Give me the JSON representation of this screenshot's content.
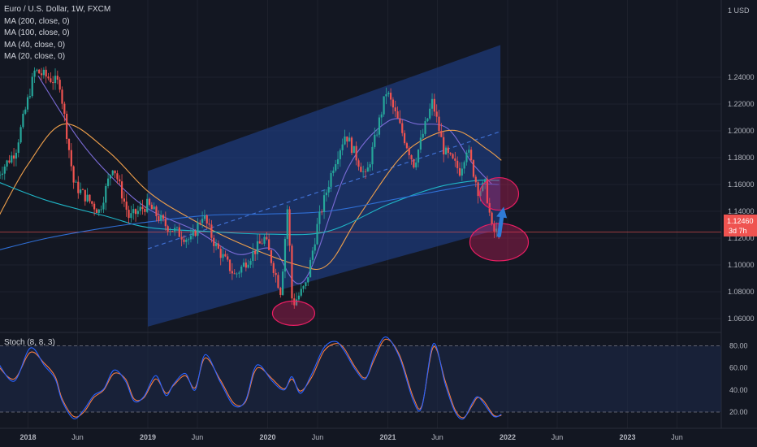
{
  "legend": {
    "title": "Euro / U.S. Dollar, 1W, FXCM",
    "ma200": "MA (200, close, 0)",
    "ma100": "MA (100, close, 0)",
    "ma40": "MA (40, close, 0)",
    "ma20": "MA (20, close, 0)"
  },
  "axis_unit": "1 USD",
  "price_tag": {
    "value": "1.12460",
    "countdown": "3d 7h"
  },
  "stoch_label": "Stoch (8, 8, 3)",
  "colors": {
    "background": "#131722",
    "up": "#26a69a",
    "down": "#ef5350",
    "channel": "#1e3a78",
    "ma20": "#7b6bd6",
    "ma40": "#f0a04b",
    "ma100": "#1fb5c6",
    "ma200": "#2f6fd6",
    "stoch_k": "#2962ff",
    "stoch_d": "#f57c42",
    "ellipse": "#e91e63"
  },
  "chart_data": {
    "type": "candlestick",
    "symbol": "EURUSD",
    "interval": "1W",
    "y_ticks": [
      1.06,
      1.08,
      1.1,
      1.12,
      1.14,
      1.16,
      1.18,
      1.2,
      1.22,
      1.24
    ],
    "y_tick_labels": [
      "1.06000",
      "1.08000",
      "1.10000",
      "1.12000",
      "1.14000",
      "1.16000",
      "1.18000",
      "1.20000",
      "1.22000",
      "1.24000"
    ],
    "x_ticks": [
      {
        "date": "2018-01-01",
        "label": "2018",
        "bold": true
      },
      {
        "date": "2018-06-01",
        "label": "Jun",
        "bold": false
      },
      {
        "date": "2019-01-01",
        "label": "2019",
        "bold": true
      },
      {
        "date": "2019-06-01",
        "label": "Jun",
        "bold": false
      },
      {
        "date": "2020-01-01",
        "label": "2020",
        "bold": true
      },
      {
        "date": "2020-06-01",
        "label": "Jun",
        "bold": false
      },
      {
        "date": "2021-01-01",
        "label": "2021",
        "bold": true
      },
      {
        "date": "2021-06-01",
        "label": "Jun",
        "bold": false
      },
      {
        "date": "2022-01-01",
        "label": "2022",
        "bold": true
      },
      {
        "date": "2022-06-01",
        "label": "Jun",
        "bold": false
      },
      {
        "date": "2023-01-01",
        "label": "2023",
        "bold": true
      },
      {
        "date": "2023-06-01",
        "label": "Jun",
        "bold": false
      }
    ],
    "close_path": [
      [
        "2017-10-01",
        1.165
      ],
      [
        "2017-12-01",
        1.185
      ],
      [
        "2018-01-29",
        1.245
      ],
      [
        "2018-04-15",
        1.235
      ],
      [
        "2018-05-28",
        1.16
      ],
      [
        "2018-08-13",
        1.14
      ],
      [
        "2018-09-24",
        1.175
      ],
      [
        "2018-11-12",
        1.135
      ],
      [
        "2019-01-07",
        1.145
      ],
      [
        "2019-03-01",
        1.13
      ],
      [
        "2019-05-20",
        1.118
      ],
      [
        "2019-06-24",
        1.138
      ],
      [
        "2019-08-01",
        1.115
      ],
      [
        "2019-09-30",
        1.092
      ],
      [
        "2019-12-30",
        1.12
      ],
      [
        "2020-02-17",
        1.08
      ],
      [
        "2020-03-09",
        1.145
      ],
      [
        "2020-03-23",
        1.07
      ],
      [
        "2020-05-04",
        1.085
      ],
      [
        "2020-06-08",
        1.13
      ],
      [
        "2020-07-27",
        1.175
      ],
      [
        "2020-09-01",
        1.198
      ],
      [
        "2020-11-02",
        1.165
      ],
      [
        "2021-01-04",
        1.23
      ],
      [
        "2021-03-29",
        1.175
      ],
      [
        "2021-05-24",
        1.222
      ],
      [
        "2021-06-28",
        1.185
      ],
      [
        "2021-08-16",
        1.17
      ],
      [
        "2021-09-06",
        1.188
      ],
      [
        "2021-10-11",
        1.155
      ],
      [
        "2021-11-01",
        1.16
      ],
      [
        "2021-11-22",
        1.125
      ],
      [
        "2021-12-06",
        1.1246
      ]
    ],
    "channel": {
      "x": [
        "2019-01-01",
        "2021-12-10"
      ],
      "lower": [
        1.054,
        1.127
      ],
      "upper": [
        1.17,
        1.264
      ],
      "mid": [
        1.112,
        1.1995
      ]
    },
    "horizontal_line": 1.1246,
    "ellipses": [
      {
        "date": "2020-03-20",
        "price": 1.064
      },
      {
        "date": "2021-12-06",
        "price": 1.117
      },
      {
        "date": "2021-12-06",
        "price": 1.153
      }
    ],
    "arrow": {
      "from": [
        "2021-12-06",
        1.122
      ],
      "to": [
        "2021-12-20",
        1.141
      ]
    },
    "moving_averages": [
      {
        "name": "MA (20, close, 0)",
        "points": [
          [
            "2018-02-01",
            1.241
          ],
          [
            "2018-06-01",
            1.195
          ],
          [
            "2018-09-15",
            1.165
          ],
          [
            "2019-01-01",
            1.142
          ],
          [
            "2019-06-01",
            1.125
          ],
          [
            "2019-10-01",
            1.108
          ],
          [
            "2020-01-15",
            1.112
          ],
          [
            "2020-04-20",
            1.088
          ],
          [
            "2020-09-01",
            1.172
          ],
          [
            "2021-01-01",
            1.207
          ],
          [
            "2021-04-01",
            1.205
          ],
          [
            "2021-07-01",
            1.202
          ],
          [
            "2021-09-15",
            1.176
          ],
          [
            "2021-11-15",
            1.16
          ]
        ]
      },
      {
        "name": "MA (40, close, 0)",
        "points": [
          [
            "2017-10-01",
            1.135
          ],
          [
            "2018-01-01",
            1.175
          ],
          [
            "2018-04-20",
            1.205
          ],
          [
            "2018-09-01",
            1.185
          ],
          [
            "2019-01-01",
            1.155
          ],
          [
            "2019-05-01",
            1.136
          ],
          [
            "2019-10-01",
            1.117
          ],
          [
            "2020-04-01",
            1.1
          ],
          [
            "2020-07-01",
            1.1
          ],
          [
            "2020-10-01",
            1.135
          ],
          [
            "2021-02-01",
            1.178
          ],
          [
            "2021-05-01",
            1.195
          ],
          [
            "2021-08-01",
            1.2
          ],
          [
            "2021-11-01",
            1.186
          ],
          [
            "2021-12-13",
            1.178
          ]
        ]
      },
      {
        "name": "MA (100, close, 0)",
        "points": [
          [
            "2017-10-01",
            1.162
          ],
          [
            "2018-03-01",
            1.148
          ],
          [
            "2018-09-01",
            1.136
          ],
          [
            "2019-01-01",
            1.128
          ],
          [
            "2019-07-01",
            1.125
          ],
          [
            "2020-01-01",
            1.123
          ],
          [
            "2020-07-01",
            1.125
          ],
          [
            "2021-01-01",
            1.145
          ],
          [
            "2021-06-01",
            1.158
          ],
          [
            "2021-10-01",
            1.163
          ],
          [
            "2021-12-06",
            1.163
          ]
        ]
      },
      {
        "name": "MA (200, close, 0)",
        "points": [
          [
            "2017-10-01",
            1.111
          ],
          [
            "2018-03-01",
            1.12
          ],
          [
            "2018-09-01",
            1.128
          ],
          [
            "2019-01-01",
            1.132
          ],
          [
            "2019-07-01",
            1.137
          ],
          [
            "2020-01-01",
            1.138
          ],
          [
            "2020-07-01",
            1.14
          ],
          [
            "2021-01-01",
            1.148
          ],
          [
            "2021-06-01",
            1.155
          ],
          [
            "2021-10-01",
            1.16
          ],
          [
            "2021-12-06",
            1.16
          ]
        ]
      }
    ],
    "stochastic": {
      "name": "Stoch (8, 8, 3)",
      "y_ticks": [
        20,
        40,
        60,
        80
      ],
      "y_tick_labels": [
        "20.00",
        "40.00",
        "60.00",
        "80.00"
      ],
      "bands": [
        20,
        80
      ],
      "k_path": [
        [
          "2017-10-01",
          65
        ],
        [
          "2017-11-20",
          48
        ],
        [
          "2018-01-08",
          78
        ],
        [
          "2018-02-20",
          62
        ],
        [
          "2018-03-25",
          50
        ],
        [
          "2018-04-15",
          30
        ],
        [
          "2018-05-20",
          14
        ],
        [
          "2018-06-20",
          22
        ],
        [
          "2018-07-20",
          35
        ],
        [
          "2018-08-20",
          41
        ],
        [
          "2018-09-20",
          58
        ],
        [
          "2018-10-25",
          48
        ],
        [
          "2018-11-20",
          30
        ],
        [
          "2018-12-20",
          34
        ],
        [
          "2019-01-25",
          53
        ],
        [
          "2019-02-25",
          35
        ],
        [
          "2019-03-20",
          45
        ],
        [
          "2019-04-25",
          55
        ],
        [
          "2019-05-25",
          40
        ],
        [
          "2019-06-25",
          72
        ],
        [
          "2019-08-10",
          47
        ],
        [
          "2019-09-20",
          26
        ],
        [
          "2019-10-25",
          30
        ],
        [
          "2019-11-20",
          58
        ],
        [
          "2019-12-10",
          62
        ],
        [
          "2020-01-15",
          48
        ],
        [
          "2020-02-20",
          40
        ],
        [
          "2020-03-15",
          52
        ],
        [
          "2020-04-10",
          37
        ],
        [
          "2020-05-15",
          55
        ],
        [
          "2020-06-20",
          78
        ],
        [
          "2020-07-25",
          84
        ],
        [
          "2020-08-20",
          76
        ],
        [
          "2020-09-25",
          58
        ],
        [
          "2020-10-25",
          50
        ],
        [
          "2020-11-20",
          70
        ],
        [
          "2020-12-25",
          88
        ],
        [
          "2021-02-05",
          70
        ],
        [
          "2021-03-20",
          30
        ],
        [
          "2021-04-15",
          25
        ],
        [
          "2021-05-20",
          82
        ],
        [
          "2021-06-25",
          45
        ],
        [
          "2021-07-25",
          20
        ],
        [
          "2021-08-20",
          14
        ],
        [
          "2021-09-15",
          28
        ],
        [
          "2021-10-01",
          34
        ],
        [
          "2021-10-20",
          28
        ],
        [
          "2021-11-20",
          16
        ],
        [
          "2021-12-13",
          18
        ]
      ],
      "d_path": [
        [
          "2017-10-01",
          62
        ],
        [
          "2017-11-20",
          50
        ],
        [
          "2018-01-08",
          74
        ],
        [
          "2018-02-20",
          64
        ],
        [
          "2018-03-25",
          52
        ],
        [
          "2018-04-15",
          32
        ],
        [
          "2018-05-20",
          16
        ],
        [
          "2018-06-20",
          20
        ],
        [
          "2018-07-20",
          33
        ],
        [
          "2018-08-20",
          40
        ],
        [
          "2018-09-20",
          55
        ],
        [
          "2018-10-25",
          50
        ],
        [
          "2018-11-20",
          32
        ],
        [
          "2018-12-20",
          33
        ],
        [
          "2019-01-25",
          50
        ],
        [
          "2019-02-25",
          37
        ],
        [
          "2019-03-20",
          44
        ],
        [
          "2019-04-25",
          53
        ],
        [
          "2019-05-25",
          42
        ],
        [
          "2019-06-25",
          69
        ],
        [
          "2019-08-10",
          49
        ],
        [
          "2019-09-20",
          28
        ],
        [
          "2019-10-25",
          29
        ],
        [
          "2019-11-20",
          55
        ],
        [
          "2019-12-10",
          60
        ],
        [
          "2020-01-15",
          50
        ],
        [
          "2020-02-20",
          41
        ],
        [
          "2020-03-15",
          50
        ],
        [
          "2020-04-10",
          39
        ],
        [
          "2020-05-15",
          52
        ],
        [
          "2020-06-20",
          75
        ],
        [
          "2020-07-25",
          82
        ],
        [
          "2020-08-20",
          78
        ],
        [
          "2020-09-25",
          60
        ],
        [
          "2020-10-25",
          51
        ],
        [
          "2020-11-20",
          67
        ],
        [
          "2020-12-25",
          86
        ],
        [
          "2021-02-05",
          72
        ],
        [
          "2021-03-20",
          33
        ],
        [
          "2021-04-15",
          26
        ],
        [
          "2021-05-20",
          79
        ],
        [
          "2021-06-25",
          48
        ],
        [
          "2021-07-25",
          22
        ],
        [
          "2021-08-20",
          15
        ],
        [
          "2021-09-15",
          26
        ],
        [
          "2021-10-01",
          33
        ],
        [
          "2021-10-20",
          30
        ],
        [
          "2021-11-20",
          17
        ],
        [
          "2021-12-13",
          17
        ]
      ]
    }
  }
}
